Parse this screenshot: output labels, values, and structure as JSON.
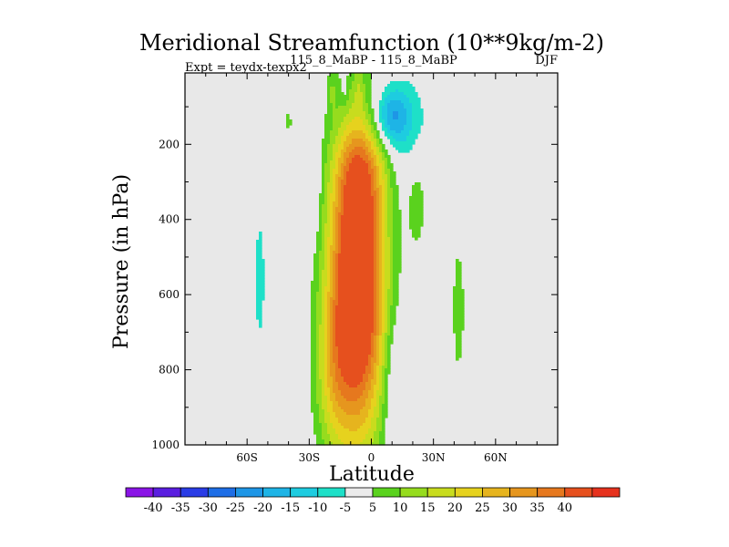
{
  "chart_data": {
    "type": "heatmap",
    "title": "Meridional Streamfunction (10**9kg/m-2)",
    "subtitle_left": "Expt = teydx-texpx2",
    "subtitle_center": "115_8_MaBP - 115_8_MaBP",
    "subtitle_right": "DJF",
    "xlabel": "Latitude",
    "ylabel": "Pressure (in hPa)",
    "xlim": [
      -90,
      90
    ],
    "ylim": [
      1000,
      10
    ],
    "x_ticks": [
      -60,
      -30,
      0,
      30,
      60
    ],
    "x_tick_labels": [
      "60S",
      "30S",
      "0",
      "30N",
      "60N"
    ],
    "y_ticks": [
      200,
      400,
      600,
      800,
      1000
    ],
    "y_tick_labels": [
      "200",
      "400",
      "600",
      "800",
      "1000"
    ],
    "colorbar": {
      "colors": [
        "#8a14e6",
        "#5a1ee0",
        "#2a3ce6",
        "#1e6ee6",
        "#1e96e6",
        "#1eb4e6",
        "#1ecce0",
        "#1ee0c8",
        "#ebebeb",
        "#5ad21e",
        "#96dc1e",
        "#c8dc1e",
        "#e6d21e",
        "#e6b41e",
        "#e6961e",
        "#e6781e",
        "#e6501e",
        "#e6321e"
      ],
      "labels": [
        "-40",
        "-35",
        "-30",
        "-25",
        "-20",
        "-15",
        "-10",
        "-5",
        "5",
        "10",
        "15",
        "20",
        "25",
        "30",
        "35",
        "40"
      ],
      "levels": [
        -40,
        -35,
        -30,
        -25,
        -20,
        -15,
        -10,
        -5,
        5,
        10,
        15,
        20,
        25,
        30,
        35,
        40
      ]
    },
    "background_color": "#e8e8e8",
    "centers": [
      {
        "lat": -7,
        "p": 580,
        "value": 60,
        "sigma_lat": 9.5,
        "sigma_p": 280
      },
      {
        "lat": -19,
        "p": 820,
        "value": 12,
        "sigma_lat": 6,
        "sigma_p": 150
      },
      {
        "lat": -5,
        "p": 280,
        "value": 15,
        "sigma_lat": 8,
        "sigma_p": 90
      },
      {
        "lat": 9,
        "p": 125,
        "value": -20,
        "sigma_lat": 6,
        "sigma_p": 55
      },
      {
        "lat": 18,
        "p": 150,
        "value": -8,
        "sigma_lat": 7,
        "sigma_p": 90
      },
      {
        "lat": 11,
        "p": 840,
        "value": -8.5,
        "sigma_lat": 4,
        "sigma_p": 140
      },
      {
        "lat": 22,
        "p": 350,
        "value": 7,
        "sigma_lat": 3.5,
        "sigma_p": 110
      },
      {
        "lat": -54,
        "p": 560,
        "value": -6.5,
        "sigma_lat": 2.5,
        "sigma_p": 180
      },
      {
        "lat": 42,
        "p": 640,
        "value": 6.5,
        "sigma_lat": 3,
        "sigma_p": 190
      },
      {
        "lat": -27,
        "p": 300,
        "value": -6,
        "sigma_lat": 2,
        "sigma_p": 110
      },
      {
        "lat": -40,
        "p": 140,
        "value": 6,
        "sigma_lat": 1.5,
        "sigma_p": 35
      },
      {
        "lat": -19,
        "p": 55,
        "value": 6,
        "sigma_lat": 1.5,
        "sigma_p": 40
      },
      {
        "lat": -13,
        "p": 45,
        "value": -6,
        "sigma_lat": 1.3,
        "sigma_p": 40
      },
      {
        "lat": -6,
        "p": 50,
        "value": 6,
        "sigma_lat": 1.5,
        "sigma_p": 45
      }
    ]
  }
}
